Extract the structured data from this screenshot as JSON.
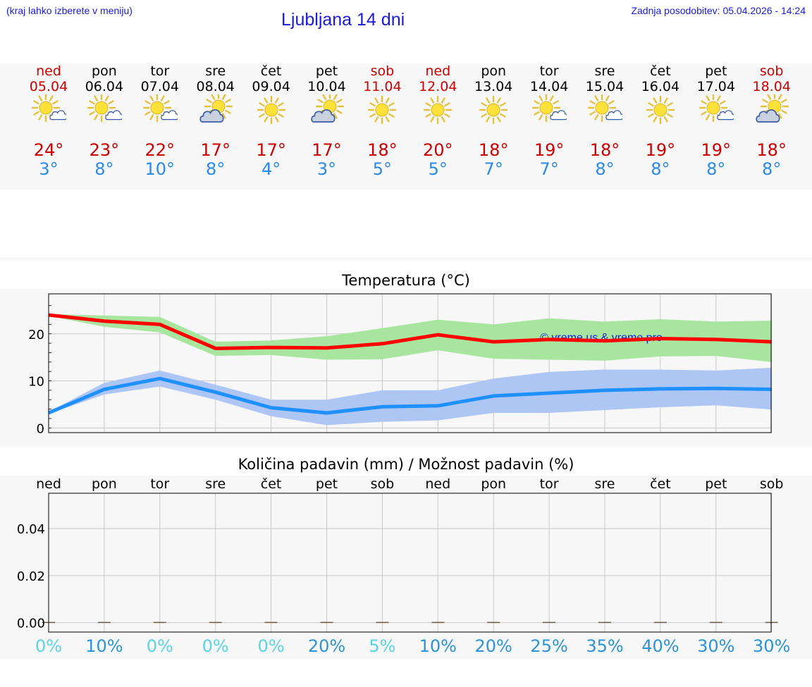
{
  "header": {
    "hint": "(kraj lahko izberete v meniju)",
    "title": "Ljubljana 14 dni",
    "updated": "Zadnja posodobitev: 05.04.2026 - 14:24"
  },
  "colors": {
    "weekend": "#cc0000",
    "tmax": "#ff0000",
    "tmin": "#1e90ff",
    "tmax_band": "#a8e6a0",
    "tmin_band": "#aec6f4",
    "prob_low": "#5bd3e6",
    "prob_high": "#2b93d6",
    "watermark": "#1a1adb"
  },
  "days": [
    {
      "name": "ned",
      "date": "05.04",
      "weekend": true,
      "icon": "sun-cloud-icon",
      "tmax": "24°",
      "tmin": "3°"
    },
    {
      "name": "pon",
      "date": "06.04",
      "weekend": false,
      "icon": "sun-cloud-icon",
      "tmax": "23°",
      "tmin": "8°"
    },
    {
      "name": "tor",
      "date": "07.04",
      "weekend": false,
      "icon": "sun-cloud-icon",
      "tmax": "22°",
      "tmin": "10°"
    },
    {
      "name": "sre",
      "date": "08.04",
      "weekend": false,
      "icon": "cloud-sun-icon",
      "tmax": "17°",
      "tmin": "8°"
    },
    {
      "name": "čet",
      "date": "09.04",
      "weekend": false,
      "icon": "sun-icon",
      "tmax": "17°",
      "tmin": "4°"
    },
    {
      "name": "pet",
      "date": "10.04",
      "weekend": false,
      "icon": "cloud-sun-icon",
      "tmax": "17°",
      "tmin": "3°"
    },
    {
      "name": "sob",
      "date": "11.04",
      "weekend": true,
      "icon": "sun-icon",
      "tmax": "18°",
      "tmin": "5°"
    },
    {
      "name": "ned",
      "date": "12.04",
      "weekend": true,
      "icon": "sun-icon",
      "tmax": "20°",
      "tmin": "5°"
    },
    {
      "name": "pon",
      "date": "13.04",
      "weekend": false,
      "icon": "sun-icon",
      "tmax": "18°",
      "tmin": "7°"
    },
    {
      "name": "tor",
      "date": "14.04",
      "weekend": false,
      "icon": "sun-cloud-icon",
      "tmax": "19°",
      "tmin": "7°"
    },
    {
      "name": "sre",
      "date": "15.04",
      "weekend": false,
      "icon": "sun-cloud-icon",
      "tmax": "18°",
      "tmin": "8°"
    },
    {
      "name": "čet",
      "date": "16.04",
      "weekend": false,
      "icon": "sun-icon",
      "tmax": "19°",
      "tmin": "8°"
    },
    {
      "name": "pet",
      "date": "17.04",
      "weekend": false,
      "icon": "sun-cloud-icon",
      "tmax": "19°",
      "tmin": "8°"
    },
    {
      "name": "sob",
      "date": "18.04",
      "weekend": true,
      "icon": "cloud-sun-icon",
      "tmax": "18°",
      "tmin": "8°"
    }
  ],
  "chart_data": [
    {
      "type": "line",
      "title": "Temperatura (°C)",
      "watermark": "© vreme.us & vreme.pro",
      "x": [
        0,
        1,
        2,
        3,
        4,
        5,
        6,
        7,
        8,
        9,
        10,
        11,
        12,
        13
      ],
      "ylim": [
        -1,
        28.5
      ],
      "yticks": [
        0,
        10,
        20
      ],
      "grid": true,
      "series": [
        {
          "values": [
            24,
            22.7,
            22,
            16.9,
            17.1,
            17,
            17.9,
            19.8,
            18.3,
            18.8,
            18.5,
            19,
            18.8,
            18.3
          ],
          "band_low": [
            23.8,
            21.5,
            20.3,
            15.3,
            15.5,
            14.5,
            14.6,
            16.5,
            14.7,
            14.5,
            14.3,
            15.2,
            15.3,
            14
          ],
          "band_high": [
            24.2,
            23.9,
            23.6,
            18.3,
            18.6,
            19.5,
            21.2,
            23,
            22,
            23.3,
            22.6,
            23.1,
            22.6,
            22.8
          ]
        },
        {
          "values": [
            3.2,
            8.2,
            10.5,
            7.6,
            4.3,
            3.2,
            4.5,
            4.7,
            6.8,
            7.4,
            8,
            8.3,
            8.4,
            8.2
          ],
          "band_low": [
            3,
            7.1,
            8.8,
            6,
            2.5,
            0.6,
            1.3,
            1.6,
            3.2,
            3.2,
            3.8,
            4.4,
            4.8,
            3.9
          ],
          "band_high": [
            3.4,
            9.6,
            12.2,
            9.2,
            6,
            6,
            8,
            8,
            10.5,
            11.9,
            12.4,
            12.4,
            12.2,
            12.8
          ]
        }
      ]
    },
    {
      "type": "bar",
      "title": "Količina padavin (mm) / Možnost padavin (%)",
      "categories": [
        "ned",
        "pon",
        "tor",
        "sre",
        "čet",
        "pet",
        "sob",
        "ned",
        "pon",
        "tor",
        "sre",
        "čet",
        "pet",
        "sob"
      ],
      "values": [
        0,
        0,
        0,
        0,
        0,
        0,
        0,
        0,
        0,
        0,
        0,
        0,
        0,
        0
      ],
      "ylim": [
        -0.004,
        0.055
      ],
      "yticks": [
        "0.00",
        "0.02",
        "0.04"
      ],
      "ytick_values": [
        0,
        0.02,
        0.04
      ],
      "grid": true,
      "probabilities": [
        "0%",
        "10%",
        "0%",
        "0%",
        "0%",
        "20%",
        "5%",
        "10%",
        "20%",
        "25%",
        "35%",
        "40%",
        "30%",
        "30%"
      ],
      "probability_values": [
        0,
        10,
        0,
        0,
        0,
        20,
        5,
        10,
        20,
        25,
        35,
        40,
        30,
        30
      ]
    }
  ]
}
